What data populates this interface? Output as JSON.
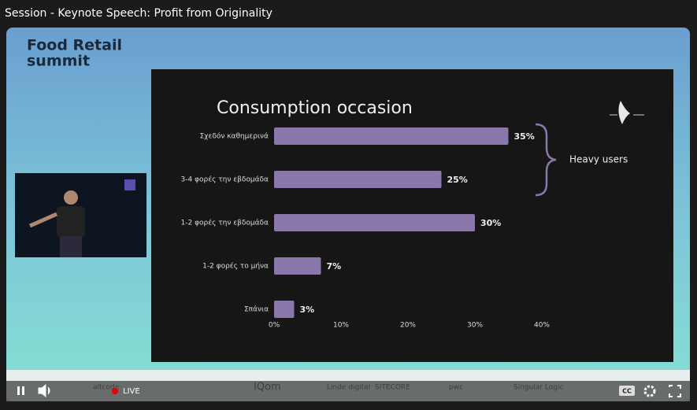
{
  "window": {
    "title": "Session - Keynote Speech: Profit from Originality"
  },
  "slide": {
    "brand_line1": "Food Retail",
    "brand_line2": "summit"
  },
  "chart_data": {
    "type": "bar",
    "orientation": "horizontal",
    "title": "Consumption occasion",
    "categories": [
      "Σχεδόν καθημερινά",
      "3-4 φορές την εβδομάδα",
      "1-2 φορές την εβδομάδα",
      "1-2 φορές το μήνα",
      "Σπάνια"
    ],
    "values": [
      35,
      25,
      30,
      7,
      3
    ],
    "value_labels": [
      "35%",
      "25%",
      "30%",
      "7%",
      "3%"
    ],
    "color": "#8b78aa",
    "xlim": [
      0,
      40
    ],
    "xticks": [
      {
        "value": 0,
        "label": "0%"
      },
      {
        "value": 10,
        "label": "10%"
      },
      {
        "value": 20,
        "label": "20%"
      },
      {
        "value": 30,
        "label": "30%"
      },
      {
        "value": 40,
        "label": "40%"
      }
    ],
    "grid": false,
    "annotation": "Heavy users"
  },
  "sponsors": [
    "altcode",
    "IQom",
    "Linde digital",
    "SITECORE",
    "pwc",
    "Singular Logic"
  ],
  "player": {
    "live": "LIVE",
    "cc": "CC"
  }
}
